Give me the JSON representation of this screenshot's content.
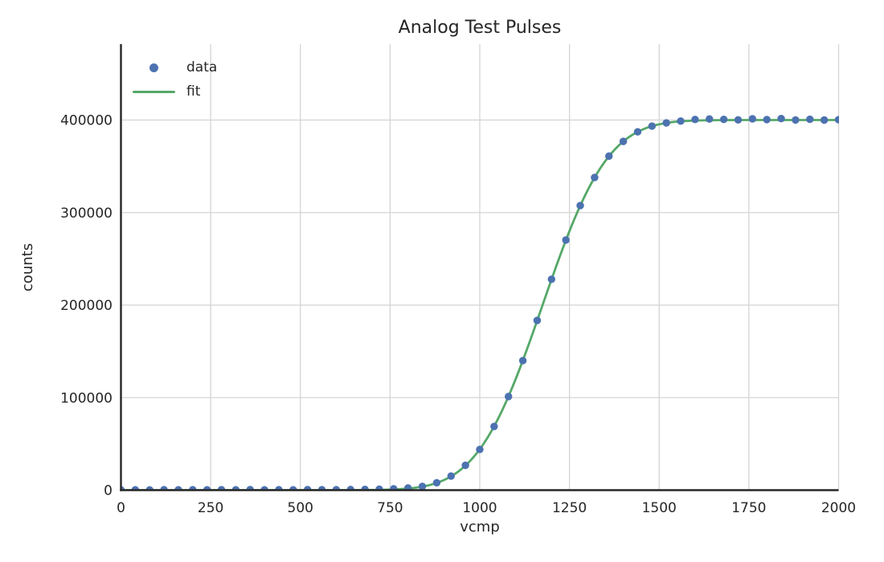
{
  "chart_data": {
    "type": "scatter",
    "title": "Analog Test Pulses",
    "xlabel": "vcmp",
    "ylabel": "counts",
    "xlim": [
      0,
      2000
    ],
    "ylim": [
      0,
      482000
    ],
    "x_ticks": [
      0,
      250,
      500,
      750,
      1000,
      1250,
      1500,
      1750,
      2000
    ],
    "y_ticks": [
      0,
      100000,
      200000,
      300000,
      400000
    ],
    "grid": true,
    "grid_color": "#d4d4d4",
    "spine_color": "#262626",
    "legend": {
      "position": "upper left",
      "frame": false,
      "entries": [
        {
          "label": "data",
          "type": "marker",
          "color": "#4C72B0"
        },
        {
          "label": "fit",
          "type": "line",
          "color": "#55A868"
        }
      ]
    },
    "series": [
      {
        "name": "data",
        "type": "scatter",
        "color": "#4C72B0",
        "marker": "circle",
        "x": [
          0,
          40,
          80,
          120,
          160,
          200,
          240,
          280,
          320,
          360,
          400,
          440,
          480,
          520,
          560,
          600,
          640,
          680,
          720,
          760,
          800,
          840,
          880,
          920,
          960,
          1000,
          1040,
          1080,
          1120,
          1160,
          1200,
          1240,
          1280,
          1320,
          1360,
          1400,
          1440,
          1480,
          1520,
          1560,
          1600,
          1640,
          1680,
          1720,
          1760,
          1800,
          1840,
          1880,
          1920,
          1960,
          2000
        ],
        "y": [
          250,
          420,
          310,
          520,
          330,
          450,
          380,
          500,
          410,
          560,
          360,
          480,
          400,
          540,
          460,
          520,
          640,
          820,
          1050,
          1500,
          2300,
          4100,
          8000,
          15200,
          26800,
          44000,
          68800,
          101200,
          140000,
          183400,
          227900,
          270300,
          307500,
          337900,
          361000,
          376900,
          387300,
          393400,
          396900,
          398900,
          400600,
          401100,
          400700,
          400200,
          401300,
          400500,
          401600,
          400100,
          400800,
          400000,
          400400
        ]
      },
      {
        "name": "fit",
        "type": "line",
        "color": "#55A868",
        "fit_model": {
          "form": "A/2 * (1 + erf((x - mu) / (sigma * sqrt(2))))",
          "A": 400000,
          "mu": 1175,
          "sigma": 143
        }
      }
    ]
  }
}
